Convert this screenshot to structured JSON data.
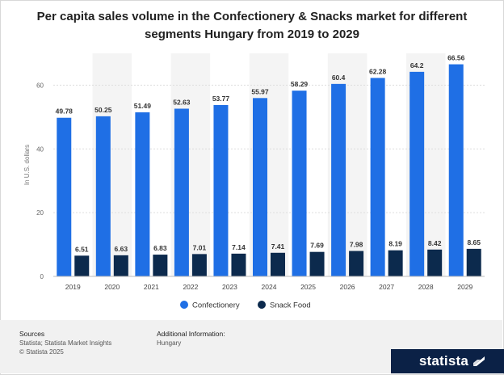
{
  "title": "Per capita sales volume in the Confectionery & Snacks market for different segments Hungary from 2019 to 2029",
  "chart_data": {
    "type": "bar",
    "title": "Per capita sales volume in the Confectionery & Snacks market for different segments Hungary from 2019 to 2029",
    "xlabel": "",
    "ylabel": "In U.S. dollars",
    "ylim": [
      0,
      70
    ],
    "yticks": [
      0,
      20,
      40,
      60
    ],
    "grid": true,
    "legend": "bottom",
    "categories": [
      "2019",
      "2020",
      "2021",
      "2022",
      "2023",
      "2024",
      "2025",
      "2026",
      "2027",
      "2028",
      "2029"
    ],
    "series": [
      {
        "name": "Confectionery",
        "color": "#1f6fe5",
        "values": [
          49.78,
          50.25,
          51.49,
          52.63,
          53.77,
          55.97,
          58.29,
          60.4,
          62.28,
          64.2,
          66.56
        ]
      },
      {
        "name": "Snack Food",
        "color": "#0c2a4d",
        "values": [
          6.51,
          6.63,
          6.83,
          7.01,
          7.14,
          7.41,
          7.69,
          7.98,
          8.19,
          8.42,
          8.65
        ]
      }
    ]
  },
  "footer": {
    "sources_heading": "Sources",
    "sources_line1": "Statista; Statista Market Insights",
    "sources_line2": "© Statista 2025",
    "info_heading": "Additional Information:",
    "info_line1": "Hungary"
  },
  "logo": {
    "text": "statista",
    "icon": "statista-logo-icon",
    "color": "#0b2146"
  }
}
